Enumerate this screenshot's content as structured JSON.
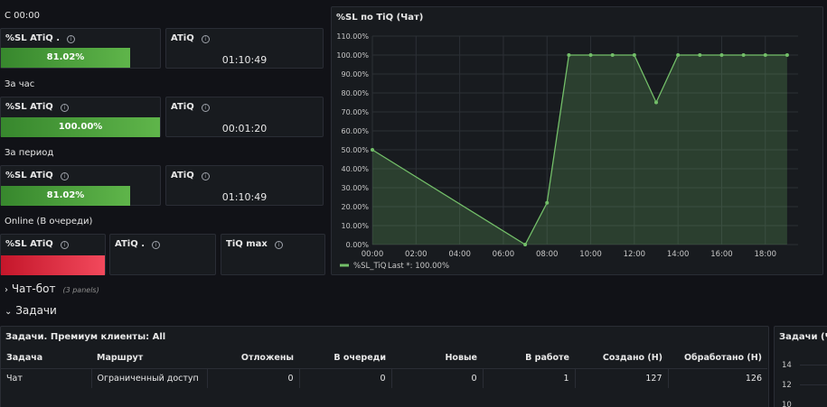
{
  "sections": {
    "s1": "С 00:00",
    "s2": "За час",
    "s3": "За период",
    "s4": "Online (В очереди)"
  },
  "stats": {
    "sl_since": {
      "title": "%SL ATiQ .",
      "value": "81.02%",
      "fill": 0.8102
    },
    "atiq_since": {
      "title": "ATiQ",
      "value": "01:10:49"
    },
    "sl_hour": {
      "title": "%SL ATiQ",
      "value": "100.00%",
      "fill": 1.0
    },
    "atiq_hour": {
      "title": "ATiQ",
      "value": "00:01:20"
    },
    "sl_period": {
      "title": "%SL ATiQ",
      "value": "81.02%",
      "fill": 0.8102
    },
    "atiq_period": {
      "title": "ATiQ",
      "value": "01:10:49"
    },
    "sl_online": {
      "title": "%SL ATiQ"
    },
    "atiq_online": {
      "title": "ATiQ ."
    },
    "tiq_max": {
      "title": "TiQ max"
    }
  },
  "chart_panel": {
    "title": "%SL по TiQ (Чат)"
  },
  "chart_data": {
    "type": "area",
    "title": "%SL по TiQ (Чат)",
    "yticks": [
      "0.00%",
      "10.00%",
      "20.00%",
      "30.00%",
      "40.00%",
      "50.00%",
      "60.00%",
      "70.00%",
      "80.00%",
      "90.00%",
      "100.00%",
      "110.00%"
    ],
    "xticks": [
      "00:00",
      "02:00",
      "04:00",
      "06:00",
      "08:00",
      "10:00",
      "12:00",
      "14:00",
      "16:00",
      "18:00"
    ],
    "ylim": [
      0,
      110
    ],
    "xlim_hours": [
      0,
      19.5
    ],
    "series": [
      {
        "name": "%SL_TiQ",
        "color": "#73bf69",
        "points": [
          {
            "x": 0,
            "y": 50
          },
          {
            "x": 7,
            "y": 0
          },
          {
            "x": 8,
            "y": 22
          },
          {
            "x": 9,
            "y": 100
          },
          {
            "x": 10,
            "y": 100
          },
          {
            "x": 11,
            "y": 100
          },
          {
            "x": 12,
            "y": 100
          },
          {
            "x": 13,
            "y": 75
          },
          {
            "x": 14,
            "y": 100
          },
          {
            "x": 15,
            "y": 100
          },
          {
            "x": 16,
            "y": 100
          },
          {
            "x": 17,
            "y": 100
          },
          {
            "x": 18,
            "y": 100
          },
          {
            "x": 19,
            "y": 100
          }
        ]
      }
    ],
    "legend": {
      "label": "%SL_TiQ",
      "stat": "Last *: 100.00%",
      "position": "bottom-left"
    },
    "grid": true
  },
  "rows": {
    "chatbot": {
      "title": "Чат-бот",
      "sub": "(3 panels)"
    },
    "tasks": {
      "title": "Задачи"
    }
  },
  "table_panel": {
    "title": "Задачи. Премиум клиенты: All",
    "headers": [
      "Задача",
      "Маршрут",
      "Отложены",
      "В очереди",
      "Новые",
      "В работе",
      "Создано (Н)",
      "Обработано (Н)"
    ],
    "rows": [
      [
        "Чат",
        "Ограниченный доступ",
        "0",
        "0",
        "0",
        "1",
        "127",
        "126"
      ]
    ]
  },
  "side_panel": {
    "title": "Задачи (Чат)",
    "ticks": [
      "14",
      "12",
      "10"
    ]
  }
}
